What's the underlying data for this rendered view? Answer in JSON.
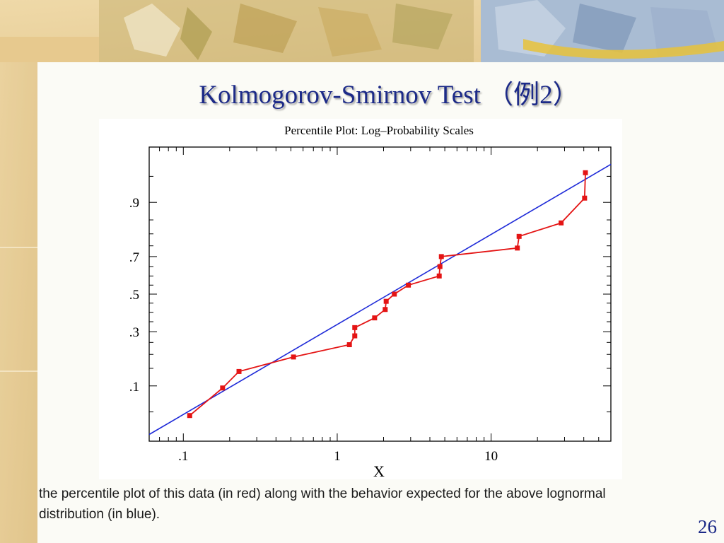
{
  "slide": {
    "title": "Kolmogorov-Smirnov Test （例2）",
    "caption": "the percentile plot of this data (in red) along with the behavior expected for the above lognormal distribution (in blue).",
    "page_number": "26"
  },
  "colors": {
    "title": "#1c2a88",
    "data_series": "#e41414",
    "reference_line": "#1f2bd8",
    "axis": "#000000"
  },
  "chart_data": {
    "type": "line",
    "title": "Percentile Plot: Log–Probability Scales",
    "xlabel": "X",
    "ylabel": "",
    "xscale": "log",
    "yscale": "probability",
    "xlim": [
      0.06,
      60
    ],
    "ylim": [
      0.02,
      0.98
    ],
    "x_ticks": [
      0.1,
      1,
      10
    ],
    "x_tick_labels": [
      ".1",
      "1",
      "10"
    ],
    "y_ticks": [
      0.1,
      0.3,
      0.5,
      0.7,
      0.9
    ],
    "y_tick_labels": [
      ".1",
      ".3",
      ".5",
      ".7",
      ".9"
    ],
    "grid": false,
    "legend": "none",
    "series": [
      {
        "style": "line+markers",
        "color": "#e41414",
        "x": [
          0.11,
          0.18,
          0.23,
          0.52,
          1.2,
          1.3,
          1.3,
          1.75,
          2.05,
          2.08,
          2.35,
          2.9,
          4.6,
          4.65,
          4.75,
          14.8,
          15.2,
          28.5,
          40.5,
          41.0
        ],
        "y": [
          0.045,
          0.095,
          0.14,
          0.19,
          0.24,
          0.28,
          0.32,
          0.37,
          0.415,
          0.46,
          0.5,
          0.55,
          0.6,
          0.65,
          0.7,
          0.74,
          0.79,
          0.84,
          0.91,
          0.955
        ]
      },
      {
        "style": "line",
        "color": "#1f2bd8",
        "x": [
          0.06,
          60
        ],
        "y": [
          0.025,
          0.965
        ]
      }
    ]
  }
}
